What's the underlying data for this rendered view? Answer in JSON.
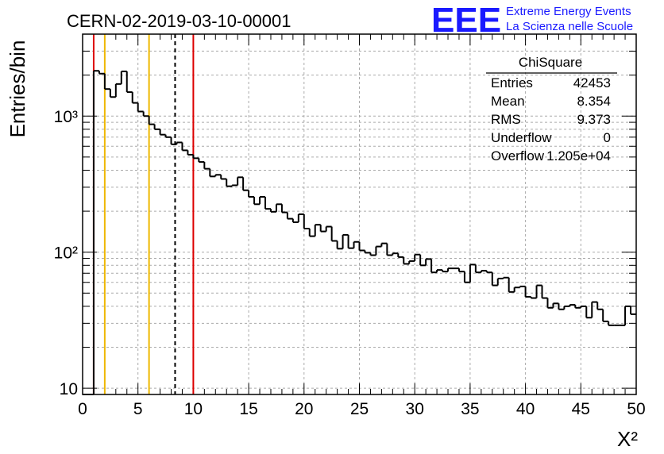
{
  "canvas_title": "CERN-02-2019-03-10-00001",
  "logo": {
    "mark": "EEE",
    "line1": "Extreme Energy Events",
    "line2": "La Scienza nelle Scuole",
    "color": "#1a1aff"
  },
  "stats_box": {
    "title": "ChiSquare",
    "rows": [
      {
        "label": "Entries",
        "value": "42453"
      },
      {
        "label": "Mean",
        "value": "8.354"
      },
      {
        "label": "RMS",
        "value": "9.373"
      },
      {
        "label": "Underflow",
        "value": "0"
      },
      {
        "label": "Overflow",
        "value": "1.205e+04"
      }
    ]
  },
  "chart_data": {
    "type": "histogram",
    "title": "CERN-02-2019-03-10-00001",
    "xlabel": "X²",
    "ylabel": "Entries/bin",
    "xlim": [
      0,
      50
    ],
    "ylim": [
      9,
      4000
    ],
    "yscale": "log",
    "grid": true,
    "bin_width": 0.5,
    "x_ticks": [
      0,
      5,
      10,
      15,
      20,
      25,
      30,
      35,
      40,
      45,
      50
    ],
    "y_ticks": [
      {
        "value": 10,
        "label": "10"
      },
      {
        "value": 100,
        "label": "10²"
      },
      {
        "value": 1000,
        "label": "10³"
      }
    ],
    "bin_values": [
      0,
      0,
      2150,
      2050,
      1580,
      1380,
      1720,
      2130,
      1500,
      1250,
      1080,
      1000,
      870,
      800,
      730,
      700,
      620,
      640,
      560,
      520,
      490,
      460,
      410,
      360,
      370,
      345,
      305,
      310,
      355,
      285,
      255,
      225,
      255,
      208,
      198,
      225,
      196,
      176,
      166,
      190,
      149,
      131,
      159,
      142,
      154,
      121,
      106,
      134,
      107,
      119,
      103,
      99,
      95,
      110,
      116,
      95,
      98,
      92,
      82,
      86,
      96,
      80,
      89,
      71,
      74,
      72,
      76,
      76,
      72,
      60,
      81,
      71,
      73,
      71,
      57,
      64,
      65,
      51,
      55,
      56,
      47,
      46,
      57,
      46,
      39,
      42,
      38,
      40,
      41,
      39,
      40,
      33,
      43,
      38,
      31,
      29,
      29,
      29,
      40,
      35
    ],
    "vertical_lines": [
      {
        "x": 1.0,
        "color": "#dd0000",
        "style": "solid"
      },
      {
        "x": 2.0,
        "color": "#eeb800",
        "style": "solid"
      },
      {
        "x": 6.0,
        "color": "#eeb800",
        "style": "solid"
      },
      {
        "x": 8.354,
        "color": "#000000",
        "style": "dashed"
      },
      {
        "x": 10.0,
        "color": "#dd0000",
        "style": "solid"
      }
    ]
  }
}
